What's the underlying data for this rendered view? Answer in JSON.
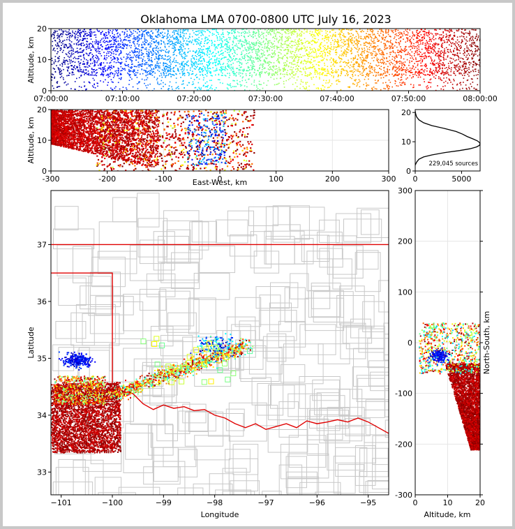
{
  "title": "Oklahoma LMA 0700-0800 UTC July 16, 2023",
  "colors": {
    "state_border": "#e00000",
    "county_lines": "#c8c8c8",
    "grid": "#e6e6e6",
    "axis": "#000000"
  },
  "chart_data": [
    {
      "type": "scatter",
      "name": "time-height",
      "xlabel": "",
      "ylabel": "Altitude, km",
      "x_ticks": [
        "07:00:00",
        "07:10:00",
        "07:20:00",
        "07:30:00",
        "07:40:00",
        "07:50:00",
        "08:00:00"
      ],
      "xlim": [
        "07:00:00",
        "08:00:00"
      ],
      "ylim": [
        0,
        20
      ],
      "y_ticks": [
        0,
        10,
        20
      ],
      "color_by": "time",
      "colormap": "jet",
      "description_points": "dense sources 0-20 km throughout the hour; densest 5-20 km"
    },
    {
      "type": "scatter",
      "name": "east-west-altitude",
      "xlabel": "East-West, km",
      "ylabel": "Altitude, km",
      "xlim": [
        -300,
        300
      ],
      "x_ticks": [
        -300,
        -200,
        -100,
        0,
        100,
        200,
        300
      ],
      "ylim": [
        0,
        20
      ],
      "y_ticks": [
        0,
        10,
        20
      ],
      "grid": true
    },
    {
      "type": "line",
      "name": "altitude-histogram",
      "annotation": "229,045 sources",
      "xlim": [
        0,
        7000
      ],
      "x_ticks": [
        0,
        5000
      ],
      "ylim": [
        0,
        21
      ],
      "y_ticks": [
        0,
        10,
        20
      ],
      "x": [
        0,
        150,
        400,
        900,
        1800,
        3200,
        4800,
        5900,
        6600,
        6900,
        7000,
        6950,
        6700,
        6200,
        5600,
        5100,
        4400,
        3200,
        1800,
        900,
        400,
        150,
        50,
        0
      ],
      "y": [
        2,
        3,
        4,
        4.8,
        5.5,
        6.3,
        7.0,
        7.6,
        8.2,
        8.7,
        9.2,
        9.7,
        10.3,
        11.0,
        11.8,
        12.6,
        13.5,
        14.5,
        15.5,
        16.5,
        17.5,
        18.5,
        19.5,
        20.5
      ]
    },
    {
      "type": "scatter",
      "name": "plan-view",
      "xlabel": "Longitude",
      "ylabel": "Latitude",
      "xlim": [
        -101.2,
        -94.6
      ],
      "ylim": [
        32.6,
        37.95
      ],
      "x_ticks": [
        -101,
        -100,
        -99,
        -98,
        -97,
        -96,
        -95
      ],
      "y_ticks": [
        33,
        34,
        35,
        36,
        37
      ],
      "map": "Oklahoma state and county boundaries"
    },
    {
      "type": "scatter",
      "name": "altitude-north-south",
      "xlabel": "Altitude, km",
      "ylabel": "North-South, km",
      "xlim": [
        0,
        20
      ],
      "x_ticks": [
        0,
        10,
        20
      ],
      "ylim": [
        -300,
        300
      ],
      "y_ticks": [
        -300,
        -200,
        -100,
        0,
        100,
        200,
        300
      ],
      "grid": true
    }
  ]
}
